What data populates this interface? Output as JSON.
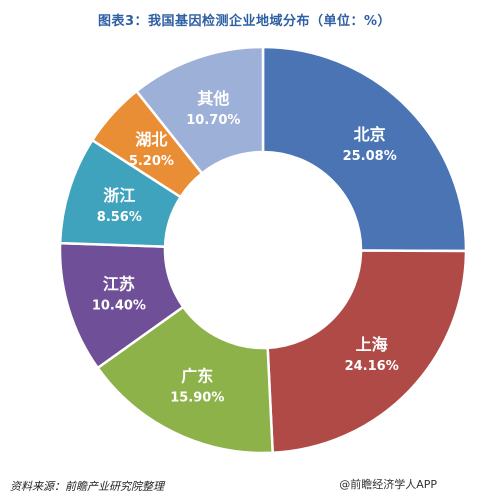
{
  "title": "图表3：我国基因检测企业地域分布（单位：%）",
  "source": "资料来源：前瞻产业研究院整理",
  "brand": "@前瞻经济学人APP",
  "chart_data": {
    "type": "pie",
    "style": "donut",
    "title": "图表3：我国基因检测企业地域分布（单位：%）",
    "unit": "%",
    "slices": [
      {
        "name": "北京",
        "value": 25.08,
        "label": "25.08%",
        "color": "#4a74b4"
      },
      {
        "name": "上海",
        "value": 24.16,
        "label": "24.16%",
        "color": "#b04a47"
      },
      {
        "name": "广东",
        "value": 15.9,
        "label": "15.90%",
        "color": "#8db24a"
      },
      {
        "name": "江苏",
        "value": 10.4,
        "label": "10.40%",
        "color": "#6f4f97"
      },
      {
        "name": "浙江",
        "value": 8.56,
        "label": "8.56%",
        "color": "#3fa3bd"
      },
      {
        "name": "湖北",
        "value": 5.2,
        "label": "5.20%",
        "color": "#ea8e35"
      },
      {
        "name": "其他",
        "value": 10.7,
        "label": "10.70%",
        "color": "#9db0d8"
      }
    ]
  }
}
